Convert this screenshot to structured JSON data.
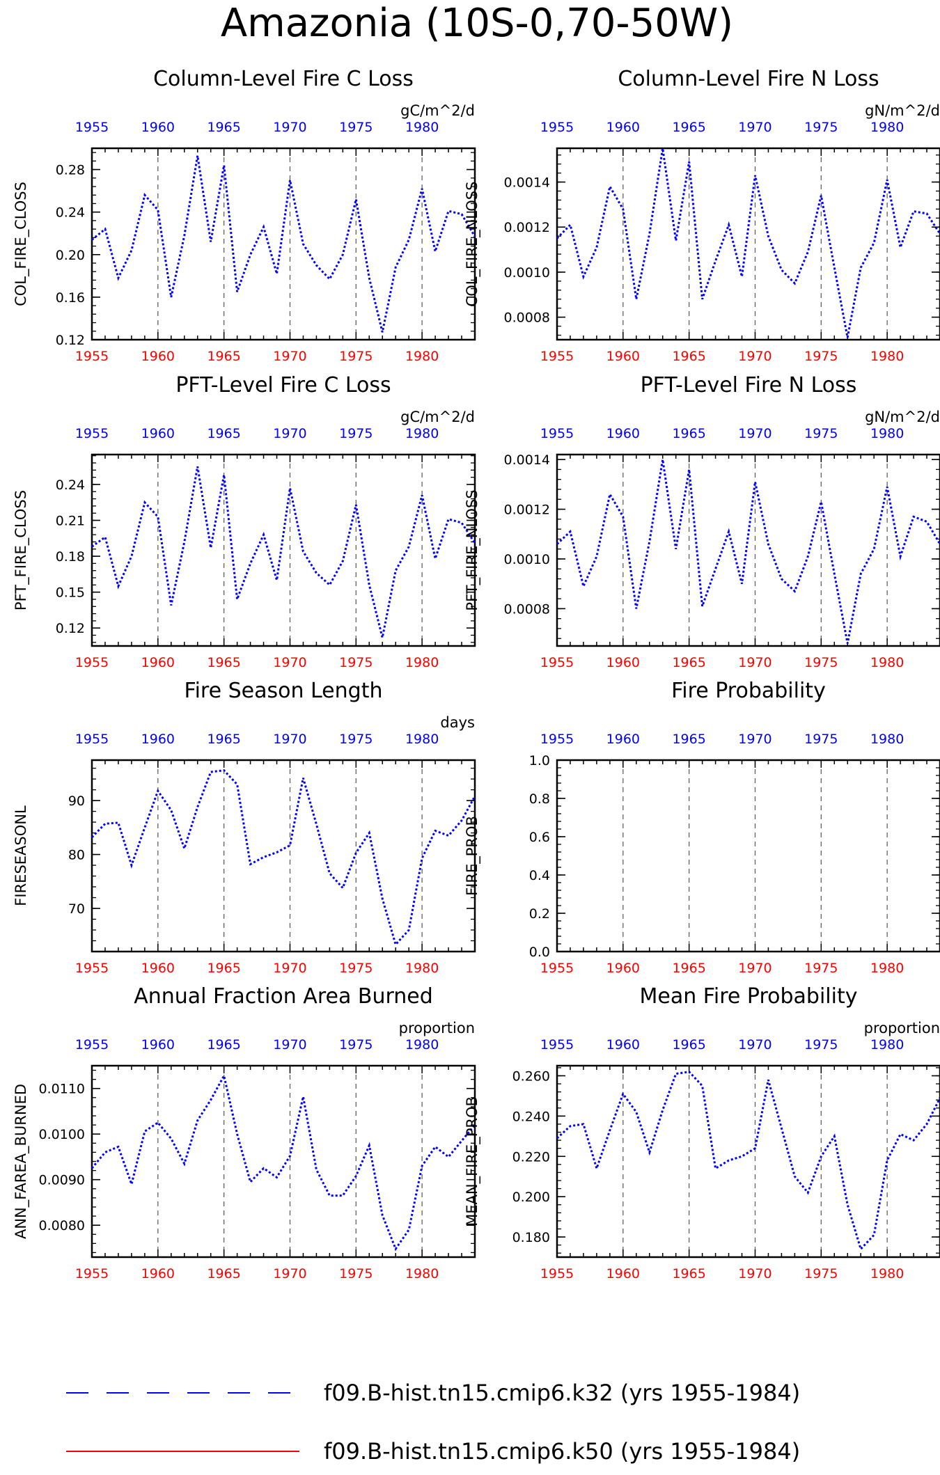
{
  "page": {
    "title": "Amazonia (10S-0,70-50W)"
  },
  "legend": [
    {
      "label": "f09.B-hist.tn15.cmip6.k32 (yrs 1955-1984)",
      "color": "#0000ff",
      "style": "dashed"
    },
    {
      "label": "f09.B-hist.tn15.cmip6.k50 (yrs 1955-1984)",
      "color": "#ff0000",
      "style": "solid"
    }
  ],
  "colors": {
    "series": "#0000ff",
    "top_ticks": "#0000ff",
    "bottom_ticks": "#ff0000",
    "axes": "#000000"
  },
  "chart_data": [
    {
      "type": "line",
      "title": "Column-Level Fire C Loss",
      "units": "gC/m^2/d",
      "ylabel": "COL_FIRE_CLOSS",
      "xlim": [
        1955,
        1984
      ],
      "ylim": [
        0.12,
        0.3
      ],
      "yticks": [
        "0.12",
        "0.16",
        "0.20",
        "0.24",
        "0.28"
      ],
      "xticks": [
        "1955",
        "1960",
        "1965",
        "1970",
        "1975",
        "1980"
      ],
      "vgrid": [
        1960,
        1965,
        1970,
        1975,
        1980
      ],
      "x": [
        1955,
        1956,
        1957,
        1958,
        1959,
        1960,
        1961,
        1962,
        1963,
        1964,
        1965,
        1966,
        1967,
        1968,
        1969,
        1970,
        1971,
        1972,
        1973,
        1974,
        1975,
        1976,
        1977,
        1978,
        1979,
        1980,
        1981,
        1982,
        1983,
        1984
      ],
      "series": [
        {
          "values": [
            0.214,
            0.224,
            0.178,
            0.204,
            0.256,
            0.242,
            0.16,
            0.218,
            0.293,
            0.212,
            0.284,
            0.165,
            0.2,
            0.226,
            0.182,
            0.27,
            0.21,
            0.19,
            0.177,
            0.2,
            0.252,
            0.178,
            0.127,
            0.188,
            0.214,
            0.262,
            0.203,
            0.241,
            0.238,
            0.217
          ]
        }
      ]
    },
    {
      "type": "line",
      "title": "Column-Level Fire N Loss",
      "units": "gN/m^2/d",
      "ylabel": "COL_FIRE_NLOSS",
      "xlim": [
        1955,
        1984
      ],
      "ylim": [
        0.0007,
        0.00155
      ],
      "yticks": [
        "0.0008",
        "0.0010",
        "0.0012",
        "0.0014"
      ],
      "xticks": [
        "1955",
        "1960",
        "1965",
        "1970",
        "1975",
        "1980"
      ],
      "vgrid": [
        1960,
        1965,
        1970,
        1975,
        1980
      ],
      "x": [
        1955,
        1956,
        1957,
        1958,
        1959,
        1960,
        1961,
        1962,
        1963,
        1964,
        1965,
        1966,
        1967,
        1968,
        1969,
        1970,
        1971,
        1972,
        1973,
        1974,
        1975,
        1976,
        1977,
        1978,
        1979,
        1980,
        1981,
        1982,
        1983,
        1984
      ],
      "series": [
        {
          "values": [
            0.00115,
            0.00121,
            0.00098,
            0.00111,
            0.00138,
            0.00128,
            0.00088,
            0.00117,
            0.00155,
            0.00114,
            0.00149,
            0.00088,
            0.00105,
            0.00121,
            0.00098,
            0.00143,
            0.00116,
            0.00101,
            0.00095,
            0.00109,
            0.00134,
            0.00102,
            0.00071,
            0.00102,
            0.00113,
            0.00141,
            0.00111,
            0.00127,
            0.00126,
            0.00117
          ]
        }
      ]
    },
    {
      "type": "line",
      "title": "PFT-Level Fire C Loss",
      "units": "gC/m^2/d",
      "ylabel": "PFT_FIRE_CLOSS",
      "xlim": [
        1955,
        1984
      ],
      "ylim": [
        0.105,
        0.265
      ],
      "yticks": [
        "0.12",
        "0.15",
        "0.18",
        "0.21",
        "0.24"
      ],
      "xticks": [
        "1955",
        "1960",
        "1965",
        "1970",
        "1975",
        "1980"
      ],
      "vgrid": [
        1960,
        1965,
        1970,
        1975,
        1980
      ],
      "x": [
        1955,
        1956,
        1957,
        1958,
        1959,
        1960,
        1961,
        1962,
        1963,
        1964,
        1965,
        1966,
        1967,
        1968,
        1969,
        1970,
        1971,
        1972,
        1973,
        1974,
        1975,
        1976,
        1977,
        1978,
        1979,
        1980,
        1981,
        1982,
        1983,
        1984
      ],
      "series": [
        {
          "values": [
            0.188,
            0.196,
            0.155,
            0.18,
            0.225,
            0.213,
            0.139,
            0.192,
            0.255,
            0.187,
            0.248,
            0.144,
            0.174,
            0.198,
            0.16,
            0.237,
            0.184,
            0.166,
            0.156,
            0.176,
            0.223,
            0.156,
            0.112,
            0.168,
            0.188,
            0.231,
            0.178,
            0.211,
            0.208,
            0.191
          ]
        }
      ]
    },
    {
      "type": "line",
      "title": "PFT-Level Fire N Loss",
      "units": "gN/m^2/d",
      "ylabel": "PFT_FIRE_NLOSS",
      "xlim": [
        1955,
        1984
      ],
      "ylim": [
        0.00065,
        0.00142
      ],
      "yticks": [
        "0.0008",
        "0.0010",
        "0.0012",
        "0.0014"
      ],
      "xticks": [
        "1955",
        "1960",
        "1965",
        "1970",
        "1975",
        "1980"
      ],
      "vgrid": [
        1960,
        1965,
        1970,
        1975,
        1980
      ],
      "x": [
        1955,
        1956,
        1957,
        1958,
        1959,
        1960,
        1961,
        1962,
        1963,
        1964,
        1965,
        1966,
        1967,
        1968,
        1969,
        1970,
        1971,
        1972,
        1973,
        1974,
        1975,
        1976,
        1977,
        1978,
        1979,
        1980,
        1981,
        1982,
        1983,
        1984
      ],
      "series": [
        {
          "values": [
            0.00106,
            0.00111,
            0.00089,
            0.00101,
            0.00126,
            0.00117,
            0.0008,
            0.00107,
            0.0014,
            0.00104,
            0.00136,
            0.00081,
            0.00096,
            0.00111,
            0.0009,
            0.00131,
            0.00106,
            0.00092,
            0.00087,
            0.00101,
            0.00123,
            0.00094,
            0.00066,
            0.00094,
            0.00104,
            0.00129,
            0.00101,
            0.00117,
            0.00115,
            0.00106
          ]
        }
      ]
    },
    {
      "type": "line",
      "title": "Fire Season Length",
      "units": "days",
      "ylabel": "FIRESEASONL",
      "xlim": [
        1955,
        1984
      ],
      "ylim": [
        62,
        97.5
      ],
      "yticks": [
        "70",
        "80",
        "90"
      ],
      "xticks": [
        "1955",
        "1960",
        "1965",
        "1970",
        "1975",
        "1980"
      ],
      "vgrid": [
        1960,
        1965,
        1970,
        1975,
        1980
      ],
      "x": [
        1955,
        1956,
        1957,
        1958,
        1959,
        1960,
        1961,
        1962,
        1963,
        1964,
        1965,
        1966,
        1967,
        1968,
        1969,
        1970,
        1971,
        1972,
        1973,
        1974,
        1975,
        1976,
        1977,
        1978,
        1979,
        1980,
        1981,
        1982,
        1983,
        1984
      ],
      "series": [
        {
          "values": [
            83.2,
            85.7,
            85.9,
            78.0,
            85.0,
            91.8,
            88.2,
            81.1,
            88.8,
            95.3,
            95.6,
            93.0,
            78.2,
            79.5,
            80.4,
            81.7,
            94.2,
            85.6,
            76.5,
            73.8,
            80.3,
            84.0,
            71.8,
            63.3,
            66.0,
            79.3,
            84.4,
            83.5,
            86.3,
            90.8
          ]
        }
      ]
    },
    {
      "type": "line",
      "title": "Fire Probability",
      "units": "",
      "ylabel": "FIRE_PROB",
      "xlim": [
        1955,
        1984
      ],
      "ylim": [
        0,
        1
      ],
      "yticks": [
        "0.0",
        "0.2",
        "0.4",
        "0.6",
        "0.8",
        "1.0"
      ],
      "xticks": [
        "1955",
        "1960",
        "1965",
        "1970",
        "1975",
        "1980"
      ],
      "vgrid": [
        1960,
        1965,
        1970,
        1975,
        1980
      ],
      "x": [],
      "series": []
    },
    {
      "type": "line",
      "title": "Annual Fraction Area Burned",
      "units": "proportion",
      "ylabel": "ANN_FAREA_BURNED",
      "xlim": [
        1955,
        1984
      ],
      "ylim": [
        0.0073,
        0.0115
      ],
      "yticks": [
        "0.0080",
        "0.0090",
        "0.0100",
        "0.0110"
      ],
      "xticks": [
        "1955",
        "1960",
        "1965",
        "1970",
        "1975",
        "1980"
      ],
      "vgrid": [
        1960,
        1965,
        1970,
        1975,
        1980
      ],
      "x": [
        1955,
        1956,
        1957,
        1958,
        1959,
        1960,
        1961,
        1962,
        1963,
        1964,
        1965,
        1966,
        1967,
        1968,
        1969,
        1970,
        1971,
        1972,
        1973,
        1974,
        1975,
        1976,
        1977,
        1978,
        1979,
        1980,
        1981,
        1982,
        1983,
        1984
      ],
      "series": [
        {
          "values": [
            0.00925,
            0.0096,
            0.00972,
            0.0089,
            0.01006,
            0.01025,
            0.0099,
            0.00935,
            0.0103,
            0.01075,
            0.01128,
            0.01,
            0.00895,
            0.00925,
            0.00905,
            0.00952,
            0.01082,
            0.00922,
            0.00865,
            0.00865,
            0.00908,
            0.00975,
            0.00822,
            0.00748,
            0.0079,
            0.0093,
            0.00972,
            0.0095,
            0.00985,
            0.0102
          ]
        }
      ]
    },
    {
      "type": "line",
      "title": "Mean Fire Probability",
      "units": "proportion",
      "ylabel": "MEAN_FIRE_PROB",
      "xlim": [
        1955,
        1984
      ],
      "ylim": [
        0.17,
        0.265
      ],
      "yticks": [
        "0.180",
        "0.200",
        "0.220",
        "0.240",
        "0.260"
      ],
      "xticks": [
        "1955",
        "1960",
        "1965",
        "1970",
        "1975",
        "1980"
      ],
      "vgrid": [
        1960,
        1965,
        1970,
        1975,
        1980
      ],
      "x": [
        1955,
        1956,
        1957,
        1958,
        1959,
        1960,
        1961,
        1962,
        1963,
        1964,
        1965,
        1966,
        1967,
        1968,
        1969,
        1970,
        1971,
        1972,
        1973,
        1974,
        1975,
        1976,
        1977,
        1978,
        1979,
        1980,
        1981,
        1982,
        1983,
        1984
      ],
      "series": [
        {
          "values": [
            0.229,
            0.235,
            0.236,
            0.214,
            0.233,
            0.251,
            0.242,
            0.222,
            0.243,
            0.261,
            0.262,
            0.255,
            0.214,
            0.218,
            0.22,
            0.224,
            0.258,
            0.234,
            0.21,
            0.202,
            0.22,
            0.23,
            0.196,
            0.174,
            0.181,
            0.218,
            0.231,
            0.228,
            0.236,
            0.249
          ]
        }
      ]
    }
  ]
}
